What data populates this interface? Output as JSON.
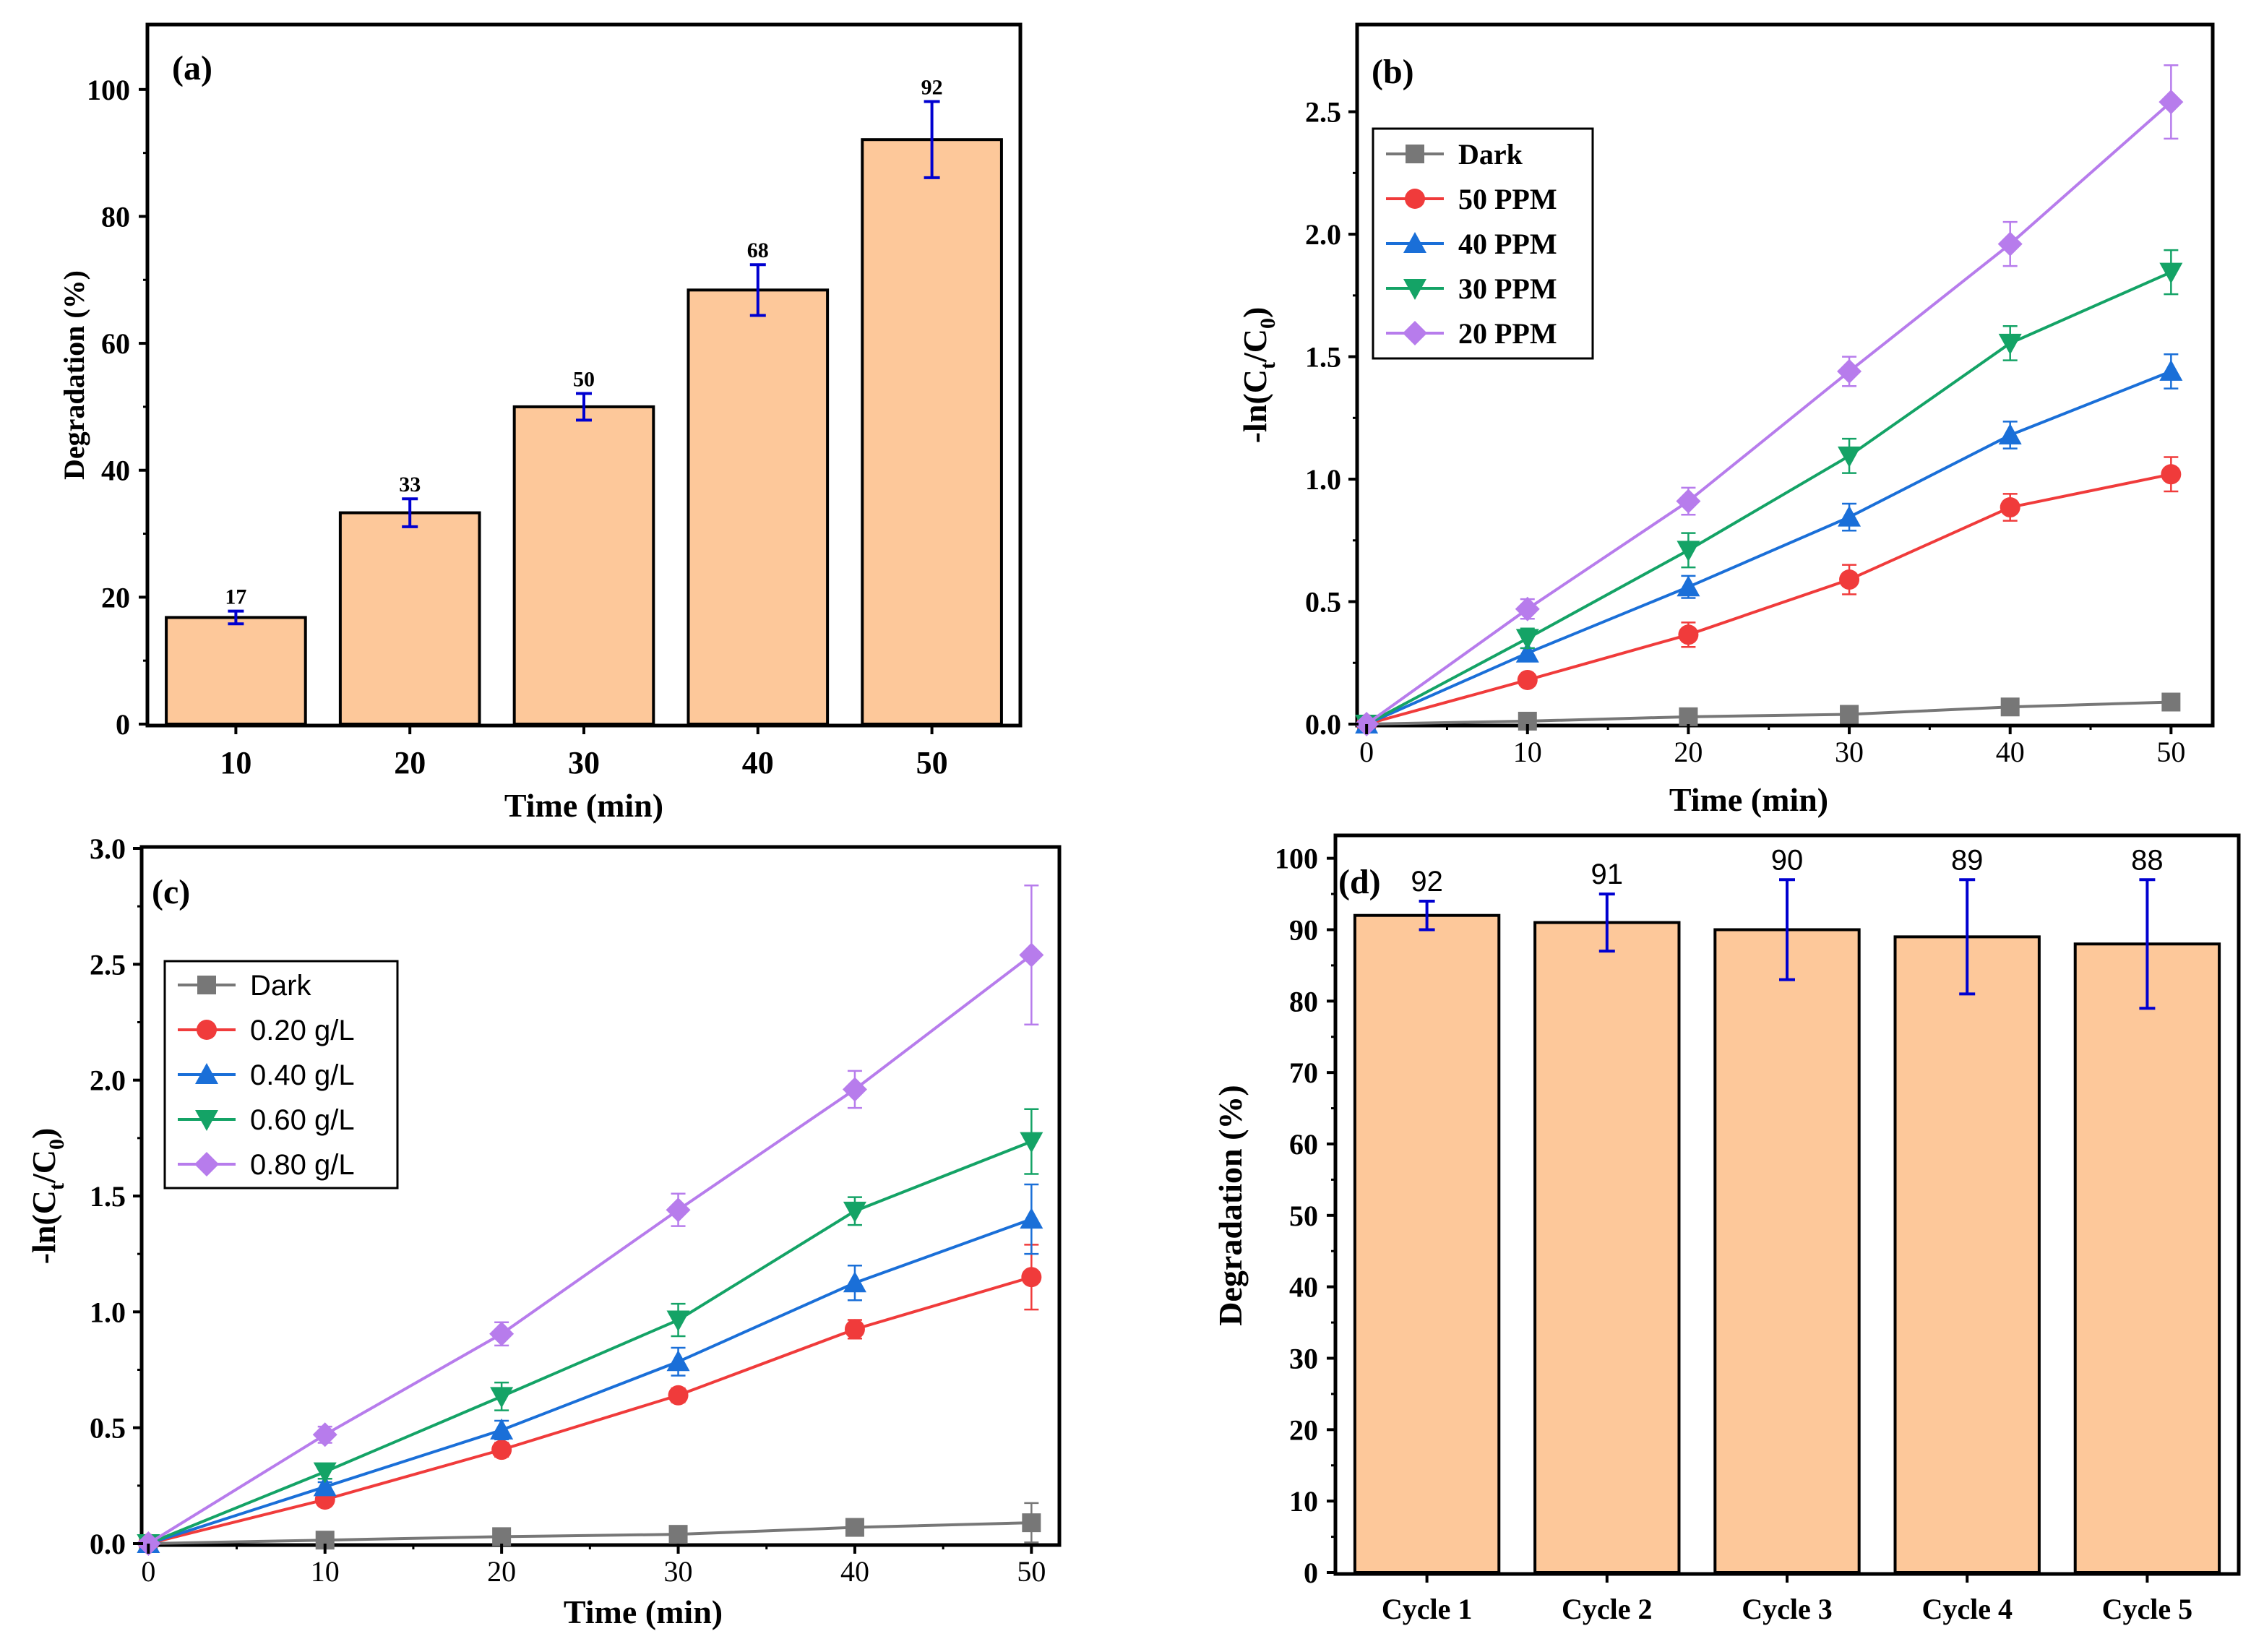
{
  "colors": {
    "bar_fill": "#FDC89A",
    "error_bar": "#0000D0",
    "dark": "#777777",
    "red": "#F03B3B",
    "blue": "#1A6FD8",
    "green": "#14A366",
    "purple": "#B77CEC"
  },
  "chart_data": [
    {
      "type": "bar",
      "panel_label": "(a)",
      "categories": [
        "10",
        "20",
        "30",
        "40",
        "50"
      ],
      "values": [
        16.8,
        33.3,
        50,
        68.4,
        92.1
      ],
      "errors": [
        1.0,
        2.2,
        2.1,
        4.0,
        6.0
      ],
      "value_labels": [
        "17",
        "33",
        "50",
        "68",
        "92"
      ],
      "xlabel": "Time (min)",
      "ylabel": "Degradation (%)",
      "ylim": [
        0,
        110
      ],
      "yticks": [
        0,
        20,
        40,
        60,
        80,
        100
      ],
      "ytick_labels": [
        "0",
        "20",
        "40",
        "60",
        "80",
        "100"
      ],
      "legend_position": "none"
    },
    {
      "type": "line",
      "panel_label": "(b)",
      "x": [
        0,
        10,
        20,
        30,
        40,
        50
      ],
      "xticks": [
        0,
        10,
        20,
        30,
        40,
        50
      ],
      "xtick_labels": [
        "0",
        "10",
        "20",
        "30",
        "40",
        "50"
      ],
      "xlim": [
        -0.5,
        52.5
      ],
      "ylim": [
        0,
        2.85
      ],
      "yticks": [
        0,
        0.5,
        1.0,
        1.5,
        2.0,
        2.5
      ],
      "ytick_labels": [
        "0.0",
        "0.5",
        "1.0",
        "1.5",
        "2.0",
        "2.5"
      ],
      "xlabel": "Time (min)",
      "ylabel_main": "-ln(C",
      "ylabel_sub1": "t",
      "ylabel_mid": "/C",
      "ylabel_sub2": "0",
      "ylabel_end": ")",
      "legend_position": "top-left",
      "series": [
        {
          "name": "Dark",
          "marker": "square",
          "color": "#777777",
          "values": [
            0,
            0.012,
            0.03,
            0.04,
            0.07,
            0.09
          ],
          "errors": [
            0,
            0.005,
            0.008,
            0.01,
            0.015,
            0.03
          ]
        },
        {
          "name": "50 PPM",
          "marker": "circle",
          "color": "#F03B3B",
          "values": [
            0,
            0.18,
            0.365,
            0.59,
            0.885,
            1.02
          ],
          "errors": [
            0,
            0.02,
            0.05,
            0.06,
            0.055,
            0.07
          ]
        },
        {
          "name": "40 PPM",
          "marker": "triangle-up",
          "color": "#1A6FD8",
          "values": [
            0,
            0.29,
            0.56,
            0.845,
            1.18,
            1.44
          ],
          "errors": [
            0,
            0.02,
            0.045,
            0.055,
            0.055,
            0.07
          ]
        },
        {
          "name": "30 PPM",
          "marker": "triangle-down",
          "color": "#14A366",
          "values": [
            0,
            0.35,
            0.71,
            1.095,
            1.555,
            1.845
          ],
          "errors": [
            0,
            0.04,
            0.07,
            0.07,
            0.07,
            0.09
          ]
        },
        {
          "name": "20 PPM",
          "marker": "diamond",
          "color": "#B77CEC",
          "values": [
            0,
            0.47,
            0.91,
            1.44,
            1.96,
            2.54
          ],
          "errors": [
            0,
            0.04,
            0.055,
            0.06,
            0.09,
            0.15
          ]
        }
      ]
    },
    {
      "type": "line",
      "panel_label": "(c)",
      "x": [
        0,
        10,
        20,
        30,
        40,
        50
      ],
      "xticks": [
        0,
        10,
        20,
        30,
        40,
        50
      ],
      "xtick_labels": [
        "0",
        "10",
        "20",
        "30",
        "40",
        "50"
      ],
      "xlim": [
        -0.3,
        51.5
      ],
      "ylim": [
        0,
        3.0
      ],
      "yticks": [
        0,
        0.5,
        1.0,
        1.5,
        2.0,
        2.5,
        3.0
      ],
      "ytick_labels": [
        "0.0",
        "0.5",
        "1.0",
        "1.5",
        "2.0",
        "2.5",
        "3.0"
      ],
      "xlabel": "Time (min)",
      "ylabel_main": "-ln(C",
      "ylabel_sub1": "t",
      "ylabel_mid": "/C",
      "ylabel_sub2": "0",
      "ylabel_end": ")",
      "legend_position": "upper-left",
      "series": [
        {
          "name": "Dark",
          "marker": "square",
          "color": "#777777",
          "values": [
            0,
            0.015,
            0.03,
            0.04,
            0.07,
            0.09
          ],
          "errors": [
            0,
            0.005,
            0.008,
            0.01,
            0.015,
            0.085
          ]
        },
        {
          "name": "0.20 g/L",
          "marker": "circle",
          "color": "#F03B3B",
          "values": [
            0,
            0.19,
            0.405,
            0.64,
            0.925,
            1.15
          ],
          "errors": [
            0,
            0.02,
            0.03,
            0.03,
            0.04,
            0.14
          ]
        },
        {
          "name": "0.40 g/L",
          "marker": "triangle-up",
          "color": "#1A6FD8",
          "values": [
            0,
            0.245,
            0.49,
            0.785,
            1.125,
            1.4
          ],
          "errors": [
            0,
            0.02,
            0.04,
            0.06,
            0.075,
            0.15
          ]
        },
        {
          "name": "0.60 g/L",
          "marker": "triangle-down",
          "color": "#14A366",
          "values": [
            0,
            0.31,
            0.635,
            0.965,
            1.435,
            1.735
          ],
          "errors": [
            0,
            0.03,
            0.06,
            0.07,
            0.06,
            0.14
          ]
        },
        {
          "name": "0.80 g/L",
          "marker": "diamond",
          "color": "#B77CEC",
          "values": [
            0,
            0.47,
            0.905,
            1.44,
            1.96,
            2.54
          ],
          "errors": [
            0,
            0.035,
            0.05,
            0.07,
            0.08,
            0.3
          ]
        }
      ]
    },
    {
      "type": "bar",
      "panel_label": "(d)",
      "categories": [
        "Cycle 1",
        "Cycle 2",
        "Cycle 3",
        "Cycle 4",
        "Cycle 5"
      ],
      "values": [
        92,
        91,
        90,
        89,
        88
      ],
      "errors": [
        2,
        4,
        7,
        8,
        9
      ],
      "value_labels": [
        "92",
        "91",
        "90",
        "89",
        "88"
      ],
      "xlabel": "",
      "ylabel": "Degradation (%)",
      "ylim": [
        0,
        103
      ],
      "yticks": [
        0,
        10,
        20,
        30,
        40,
        50,
        60,
        70,
        80,
        90,
        100
      ],
      "ytick_labels": [
        "0",
        "10",
        "20",
        "30",
        "40",
        "50",
        "60",
        "70",
        "80",
        "90",
        "100"
      ],
      "legend_position": "none"
    }
  ]
}
